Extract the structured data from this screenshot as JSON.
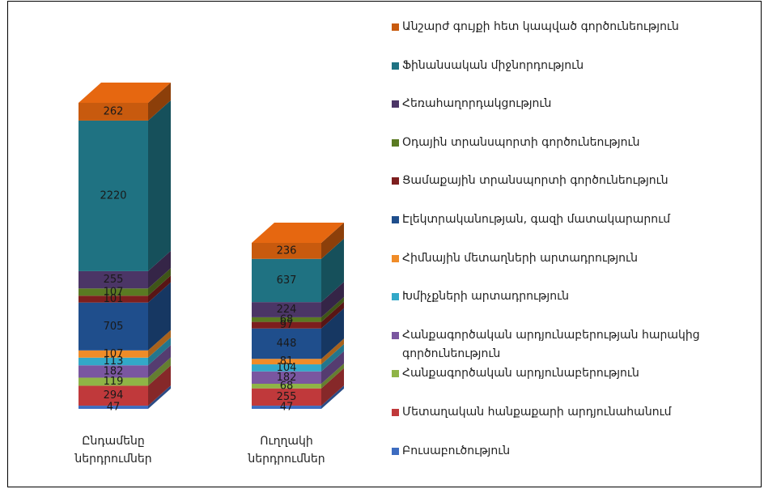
{
  "chart_data": {
    "type": "bar3d_stacked",
    "categories": [
      "Ընդամենը ներդրումներ",
      "Ուղղակի ներդրումներ"
    ],
    "series": [
      {
        "name": "Բուսաբուծություն",
        "color": "#3d6cc0",
        "values": [
          47,
          47
        ]
      },
      {
        "name": "Մետաղական հանքաքարի արդյունահանում",
        "color": "#c0393b",
        "values": [
          294,
          255
        ]
      },
      {
        "name": "Հանքագործական արդյունաբերություն",
        "color": "#8fb446",
        "values": [
          119,
          68
        ]
      },
      {
        "name": "Հանքագործական արդյունաբերության հարակից գործունեություն",
        "color": "#7a56a0",
        "values": [
          182,
          182
        ]
      },
      {
        "name": "Խմիչքների արտադրություն",
        "color": "#33a8c8",
        "values": [
          113,
          104
        ]
      },
      {
        "name": "Հիմնային մետաղների արտադրություն",
        "color": "#f08c28",
        "values": [
          107,
          81
        ]
      },
      {
        "name": "Էլեկտրականության, գազի մատակարարում",
        "color": "#1f4e8c",
        "values": [
          705,
          448
        ]
      },
      {
        "name": "Ցամաքային տրանսպորտի գործունեություն",
        "color": "#7d1e1e",
        "values": [
          101,
          97
        ]
      },
      {
        "name": "Օդային տրանսպորտի գործունեություն",
        "color": "#5a7a22",
        "values": [
          107,
          68
        ]
      },
      {
        "name": "Հեռահաղորդակցություն",
        "color": "#4b3566",
        "values": [
          255,
          224
        ]
      },
      {
        "name": "Ֆինանսական միջնորդություն",
        "color": "#1f7282",
        "values": [
          2220,
          637
        ]
      },
      {
        "name": "Անշարժ գույքի հետ կապված գործունեություն",
        "color": "#c85a0e",
        "values": [
          262,
          236
        ]
      }
    ]
  }
}
